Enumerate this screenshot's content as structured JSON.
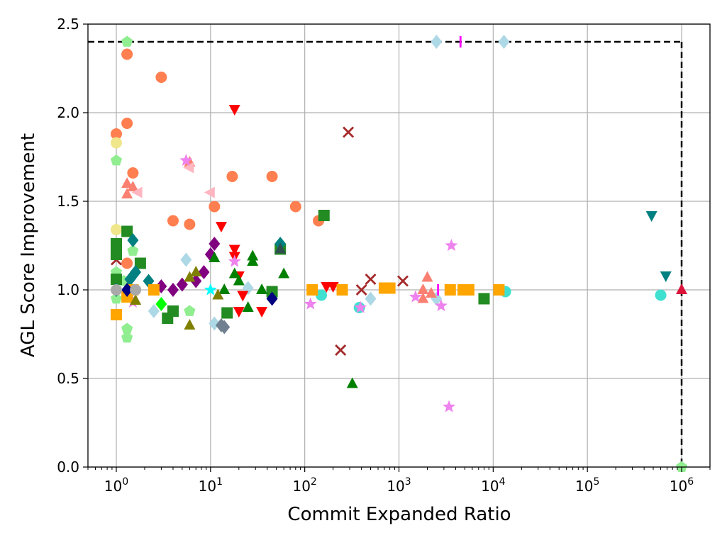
{
  "chart_data": {
    "type": "scatter",
    "title": "",
    "xlabel": "Commit Expanded Ratio",
    "ylabel": "AGL Score Improvement",
    "xscale": "log",
    "xlim": [
      0.5,
      2000000
    ],
    "ylim": [
      0.0,
      2.5
    ],
    "grid": true,
    "x_ticks": [
      {
        "value": 1,
        "base": "10",
        "exp": "0"
      },
      {
        "value": 10,
        "base": "10",
        "exp": "1"
      },
      {
        "value": 100,
        "base": "10",
        "exp": "2"
      },
      {
        "value": 1000,
        "base": "10",
        "exp": "3"
      },
      {
        "value": 10000,
        "base": "10",
        "exp": "4"
      },
      {
        "value": 100000,
        "base": "10",
        "exp": "5"
      },
      {
        "value": 1000000,
        "base": "10",
        "exp": "6"
      }
    ],
    "y_ticks": [
      {
        "value": 0.0,
        "label": "0.0"
      },
      {
        "value": 0.5,
        "label": "0.5"
      },
      {
        "value": 1.0,
        "label": "1.0"
      },
      {
        "value": 1.5,
        "label": "1.5"
      },
      {
        "value": 2.0,
        "label": "2.0"
      },
      {
        "value": 2.5,
        "label": "2.5"
      }
    ],
    "reference_lines": [
      {
        "name": "y-limit-line",
        "style": "dashed",
        "color": "#000000",
        "points": [
          [
            0.5,
            2.4
          ],
          [
            1000000,
            2.4
          ]
        ]
      },
      {
        "name": "x-limit-line",
        "style": "dashed",
        "color": "#000000",
        "points": [
          [
            1000000,
            2.4
          ],
          [
            1000000,
            0.0
          ]
        ]
      }
    ],
    "series": [
      {
        "name": "coral-circles",
        "marker": "circle",
        "color": "#ff7f50",
        "points": [
          [
            1.3,
            2.33
          ],
          [
            3.0,
            2.2
          ],
          [
            1.0,
            1.88
          ],
          [
            1.3,
            1.94
          ],
          [
            1.5,
            1.66
          ],
          [
            17,
            1.64
          ],
          [
            45,
            1.64
          ],
          [
            4.0,
            1.39
          ],
          [
            6.0,
            1.37
          ],
          [
            11,
            1.47
          ],
          [
            80,
            1.47
          ],
          [
            140,
            1.39
          ],
          [
            1.3,
            1.15
          ]
        ]
      },
      {
        "name": "khaki-circles",
        "marker": "circle",
        "color": "#f0e68c",
        "points": [
          [
            1.0,
            1.83
          ],
          [
            1.0,
            1.34
          ]
        ]
      },
      {
        "name": "turquoise-circles",
        "marker": "circle",
        "color": "#40e0d0",
        "points": [
          [
            13500,
            0.99
          ],
          [
            600000,
            0.97
          ],
          [
            380,
            0.9
          ],
          [
            150,
            0.97
          ]
        ]
      },
      {
        "name": "lightgreen-pentagons",
        "marker": "pentagon",
        "color": "#90ee90",
        "points": [
          [
            1.3,
            2.4
          ],
          [
            1.0,
            1.73
          ],
          [
            1.0,
            1.1
          ],
          [
            1.2,
            1.05
          ],
          [
            1.3,
            0.78
          ],
          [
            1.3,
            0.73
          ],
          [
            1.5,
            1.22
          ],
          [
            6.0,
            0.88
          ],
          [
            1.0,
            0.95
          ],
          [
            1000000,
            0.0
          ]
        ]
      },
      {
        "name": "lightblue-diamonds",
        "marker": "diamond",
        "color": "#add8e6",
        "points": [
          [
            2500,
            2.4
          ],
          [
            13000,
            2.4
          ],
          [
            5.5,
            1.17
          ],
          [
            25,
            1.01
          ],
          [
            500,
            0.95
          ],
          [
            2500,
            0.95
          ],
          [
            2.5,
            0.88
          ],
          [
            11,
            0.81
          ]
        ]
      },
      {
        "name": "magenta-vlines",
        "marker": "vline",
        "color": "#ff00ff",
        "points": [
          [
            4500,
            2.4
          ],
          [
            2600,
            1.0
          ]
        ]
      },
      {
        "name": "red-triangles-down",
        "marker": "triangle-down",
        "color": "#ff0000",
        "points": [
          [
            18,
            2.02
          ],
          [
            13,
            1.36
          ],
          [
            18,
            1.23
          ],
          [
            18,
            1.19
          ],
          [
            20,
            1.08
          ],
          [
            22,
            0.97
          ],
          [
            20,
            0.88
          ],
          [
            35,
            0.88
          ],
          [
            170,
            1.02
          ],
          [
            200,
            1.02
          ]
        ]
      },
      {
        "name": "brown-crosses",
        "marker": "x",
        "color": "#a52a2a",
        "points": [
          [
            290,
            1.89
          ],
          [
            240,
            0.66
          ],
          [
            500,
            1.06
          ],
          [
            400,
            1.0
          ],
          [
            1100,
            1.05
          ],
          [
            1.0,
            1.17
          ]
        ]
      },
      {
        "name": "salmon-triangles-up",
        "marker": "triangle-up",
        "color": "#fa8072",
        "points": [
          [
            1.3,
            1.6
          ],
          [
            1.3,
            1.54
          ],
          [
            1.5,
            1.58
          ],
          [
            6.0,
            1.72
          ],
          [
            2000,
            1.07
          ],
          [
            1800,
            1.0
          ],
          [
            1800,
            0.95
          ],
          [
            2200,
            0.98
          ]
        ]
      },
      {
        "name": "pink-triangles-left",
        "marker": "triangle-left",
        "color": "#ffb6c1",
        "points": [
          [
            1.7,
            1.55
          ],
          [
            10,
            1.55
          ],
          [
            6.0,
            1.69
          ]
        ]
      },
      {
        "name": "violet-stars",
        "marker": "star",
        "color": "#ee82ee",
        "points": [
          [
            5.5,
            1.73
          ],
          [
            3600,
            1.25
          ],
          [
            3400,
            0.34
          ],
          [
            115,
            0.92
          ],
          [
            2800,
            0.91
          ],
          [
            390,
            0.9
          ],
          [
            1500,
            0.96
          ],
          [
            18,
            1.16
          ],
          [
            1.5,
            0.93
          ]
        ]
      },
      {
        "name": "forestgreen-squares",
        "marker": "square",
        "color": "#228b22",
        "points": [
          [
            1.0,
            1.26
          ],
          [
            1.0,
            1.2
          ],
          [
            1.3,
            1.33
          ],
          [
            1.8,
            1.15
          ],
          [
            1.0,
            1.06
          ],
          [
            3.5,
            0.84
          ],
          [
            4.0,
            0.88
          ],
          [
            15,
            0.87
          ],
          [
            45,
            0.99
          ],
          [
            160,
            1.42
          ],
          [
            8000,
            0.95
          ],
          [
            55,
            1.23
          ]
        ]
      },
      {
        "name": "teal-diamonds",
        "marker": "diamond",
        "color": "#008080",
        "points": [
          [
            1.5,
            1.28
          ],
          [
            1.6,
            1.1
          ],
          [
            2.2,
            1.05
          ],
          [
            55,
            1.26
          ],
          [
            1.0,
            1.0
          ],
          [
            1.4,
            1.06
          ]
        ]
      },
      {
        "name": "teal-triangles-down",
        "marker": "triangle-down",
        "color": "#008080",
        "points": [
          [
            480000,
            1.42
          ],
          [
            680000,
            1.08
          ]
        ]
      },
      {
        "name": "crimson-triangles-up",
        "marker": "triangle-up",
        "color": "#dc143c",
        "points": [
          [
            1000000,
            1.0
          ]
        ]
      },
      {
        "name": "purple-diamonds",
        "marker": "diamond",
        "color": "#800080",
        "points": [
          [
            10,
            1.2
          ],
          [
            11,
            1.26
          ],
          [
            5.0,
            1.03
          ],
          [
            4.0,
            1.0
          ],
          [
            3.0,
            1.02
          ],
          [
            7.0,
            1.05
          ],
          [
            8.5,
            1.1
          ]
        ]
      },
      {
        "name": "green-triangles-up",
        "marker": "triangle-up",
        "color": "#008000",
        "points": [
          [
            11,
            1.18
          ],
          [
            18,
            1.09
          ],
          [
            20,
            1.05
          ],
          [
            28,
            1.19
          ],
          [
            28,
            1.16
          ],
          [
            60,
            1.09
          ],
          [
            25,
            0.9
          ],
          [
            35,
            1.0
          ],
          [
            320,
            0.47
          ],
          [
            14,
            1.0
          ]
        ]
      },
      {
        "name": "orange-squares",
        "marker": "square",
        "color": "#ffa500",
        "points": [
          [
            1.0,
            0.86
          ],
          [
            1.5,
            1.0
          ],
          [
            2.5,
            1.0
          ],
          [
            120,
            1.0
          ],
          [
            250,
            1.0
          ],
          [
            700,
            1.01
          ],
          [
            800,
            1.01
          ],
          [
            3500,
            1.0
          ],
          [
            4800,
            1.0
          ],
          [
            5500,
            1.0
          ],
          [
            11500,
            1.0
          ],
          [
            1.3,
            0.96
          ]
        ]
      },
      {
        "name": "olive-triangles-up",
        "marker": "triangle-up",
        "color": "#808000",
        "points": [
          [
            6.0,
            0.8
          ],
          [
            6.0,
            1.07
          ],
          [
            7.0,
            1.1
          ],
          [
            12,
            0.97
          ],
          [
            1.6,
            0.94
          ]
        ]
      },
      {
        "name": "navy-diamonds",
        "marker": "diamond",
        "color": "#000080",
        "points": [
          [
            45,
            0.95
          ],
          [
            1.3,
            1.0
          ]
        ]
      },
      {
        "name": "lime-diamonds",
        "marker": "diamond",
        "color": "#00ff00",
        "points": [
          [
            3.0,
            0.92
          ]
        ]
      },
      {
        "name": "darkslategray-triangles",
        "marker": "triangle-up",
        "color": "#2f4f4f",
        "points": [
          [
            55,
            1.23
          ]
        ]
      },
      {
        "name": "slategray-diamonds",
        "marker": "diamond",
        "color": "#708090",
        "points": [
          [
            13,
            0.8
          ],
          [
            14,
            0.79
          ]
        ]
      },
      {
        "name": "cyan-stars",
        "marker": "star",
        "color": "#00ffff",
        "points": [
          [
            10,
            1.0
          ]
        ]
      },
      {
        "name": "darkgray-circles",
        "marker": "circle",
        "color": "#a9a9a9",
        "points": [
          [
            1.0,
            1.0
          ],
          [
            1.6,
            1.0
          ]
        ]
      }
    ]
  }
}
